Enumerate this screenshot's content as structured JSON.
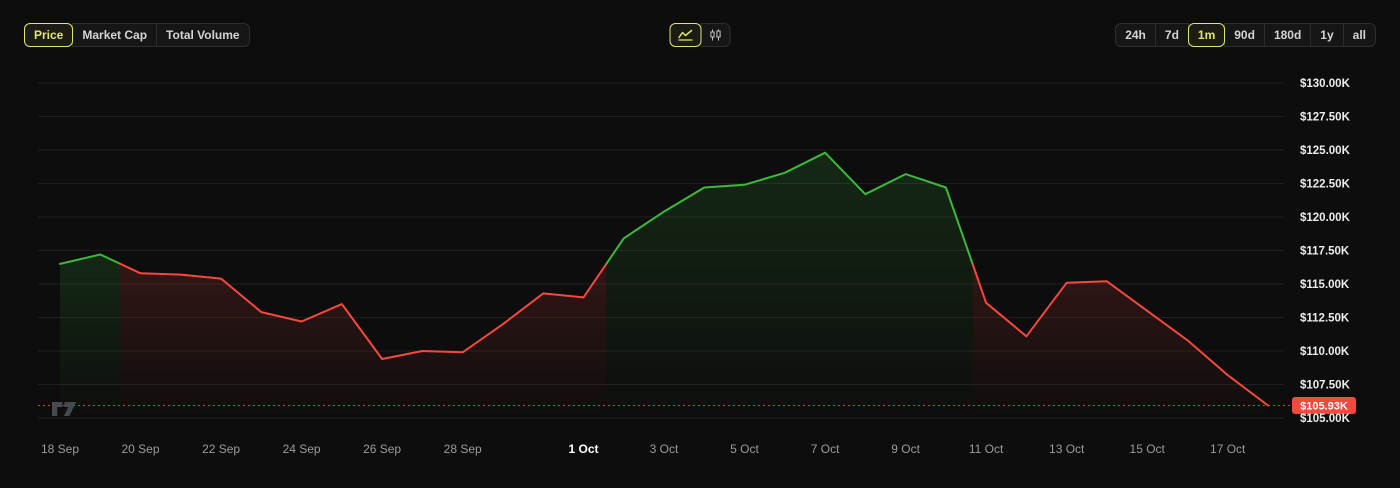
{
  "colors": {
    "background": "#0d0d0d",
    "accent": "#e2e76b",
    "up": "#3cb93c",
    "down": "#f5493d",
    "grid": "#1e1e1e",
    "badge_bg": "#f5493d",
    "badge_text": "#ffffff",
    "logo_gray": "#4d5158"
  },
  "toolbar": {
    "metric_tabs": [
      {
        "label": "Price",
        "selected": true
      },
      {
        "label": "Market Cap",
        "selected": false
      },
      {
        "label": "Total Volume",
        "selected": false
      }
    ],
    "chart_type_buttons": [
      {
        "name": "line-chart",
        "selected": true
      },
      {
        "name": "candlestick-chart",
        "selected": false
      }
    ],
    "range_buttons": [
      {
        "label": "24h",
        "selected": false
      },
      {
        "label": "7d",
        "selected": false
      },
      {
        "label": "1m",
        "selected": true
      },
      {
        "label": "90d",
        "selected": false
      },
      {
        "label": "180d",
        "selected": false
      },
      {
        "label": "1y",
        "selected": false
      },
      {
        "label": "all",
        "selected": false
      }
    ]
  },
  "chart_data": {
    "type": "line",
    "title": "",
    "xlabel": "",
    "ylabel": "Price (USD, thousands)",
    "grid": "horizontal",
    "legend": false,
    "y_axis_side": "right",
    "ylim": [
      105,
      130
    ],
    "open": 116.5,
    "current_price": 105.93,
    "current_price_label": "$105.93K",
    "series": [
      {
        "name": "Price",
        "dates": [
          "18 Sep",
          "19 Sep",
          "20 Sep",
          "21 Sep",
          "22 Sep",
          "23 Sep",
          "24 Sep",
          "25 Sep",
          "26 Sep",
          "27 Sep",
          "28 Sep",
          "29 Sep",
          "30 Sep",
          "1 Oct",
          "2 Oct",
          "3 Oct",
          "4 Oct",
          "5 Oct",
          "6 Oct",
          "7 Oct",
          "8 Oct",
          "9 Oct",
          "10 Oct",
          "11 Oct",
          "12 Oct",
          "13 Oct",
          "14 Oct",
          "15 Oct",
          "16 Oct",
          "17 Oct",
          "18 Oct"
        ],
        "values": [
          116.5,
          117.2,
          115.8,
          115.7,
          115.4,
          112.9,
          112.2,
          113.5,
          109.4,
          110.0,
          109.9,
          112.0,
          114.3,
          114.0,
          118.4,
          120.4,
          122.2,
          122.4,
          123.3,
          124.8,
          121.7,
          123.2,
          122.2,
          113.6,
          111.1,
          115.1,
          115.2,
          113.0,
          110.8,
          108.2,
          105.93
        ]
      }
    ],
    "x_ticks": [
      {
        "label": "18 Sep",
        "day": 0
      },
      {
        "label": "20 Sep",
        "day": 2
      },
      {
        "label": "22 Sep",
        "day": 4
      },
      {
        "label": "24 Sep",
        "day": 6
      },
      {
        "label": "26 Sep",
        "day": 8
      },
      {
        "label": "28 Sep",
        "day": 10
      },
      {
        "label": "1 Oct",
        "day": 13,
        "bold": true
      },
      {
        "label": "3 Oct",
        "day": 15
      },
      {
        "label": "5 Oct",
        "day": 17
      },
      {
        "label": "7 Oct",
        "day": 19
      },
      {
        "label": "9 Oct",
        "day": 21
      },
      {
        "label": "11 Oct",
        "day": 23
      },
      {
        "label": "13 Oct",
        "day": 25
      },
      {
        "label": "15 Oct",
        "day": 27
      },
      {
        "label": "17 Oct",
        "day": 29
      }
    ],
    "y_ticks": [
      {
        "label": "$105.00K",
        "value": 105
      },
      {
        "label": "$107.50K",
        "value": 107.5
      },
      {
        "label": "$110.00K",
        "value": 110
      },
      {
        "label": "$112.50K",
        "value": 112.5
      },
      {
        "label": "$115.00K",
        "value": 115
      },
      {
        "label": "$117.50K",
        "value": 117.5
      },
      {
        "label": "$120.00K",
        "value": 120
      },
      {
        "label": "$122.50K",
        "value": 122.5
      },
      {
        "label": "$125.00K",
        "value": 125
      },
      {
        "label": "$127.50K",
        "value": 127.5
      },
      {
        "label": "$130.00K",
        "value": 130
      }
    ]
  },
  "attribution": {
    "logo": "TradingView"
  }
}
